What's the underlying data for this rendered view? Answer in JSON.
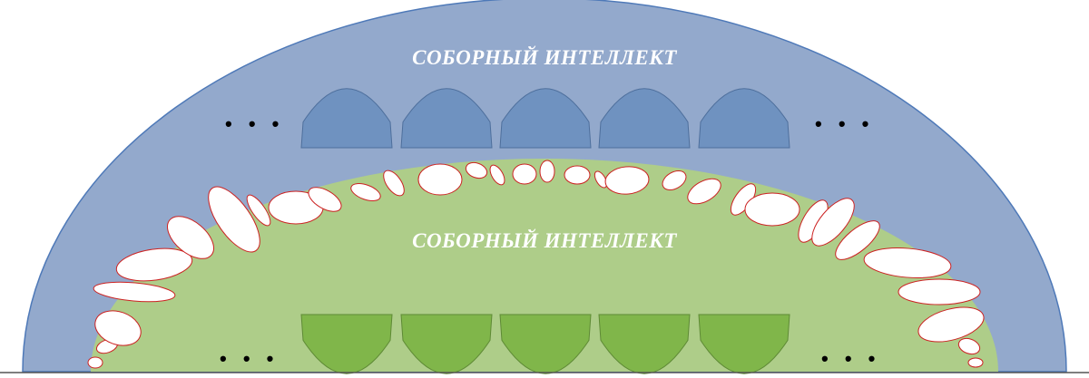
{
  "outer_sphere": {
    "title": "СОБОРНЫЙ ИНТЕЛЛЕКТ",
    "fill": "#93a9cc",
    "stroke": "#4e79b8",
    "module_fill": "#6f92c0",
    "module_count": 5
  },
  "inner_sphere": {
    "title": "СОБОРНЫЙ ИНТЕЛЛЕКТ",
    "fill": "#aecd89",
    "module_fill": "#80b64a",
    "module_count": 5
  },
  "ellipse_style": {
    "fill": "#ffffff",
    "stroke": "#cc2222"
  },
  "ellipsis_text": "• • •"
}
